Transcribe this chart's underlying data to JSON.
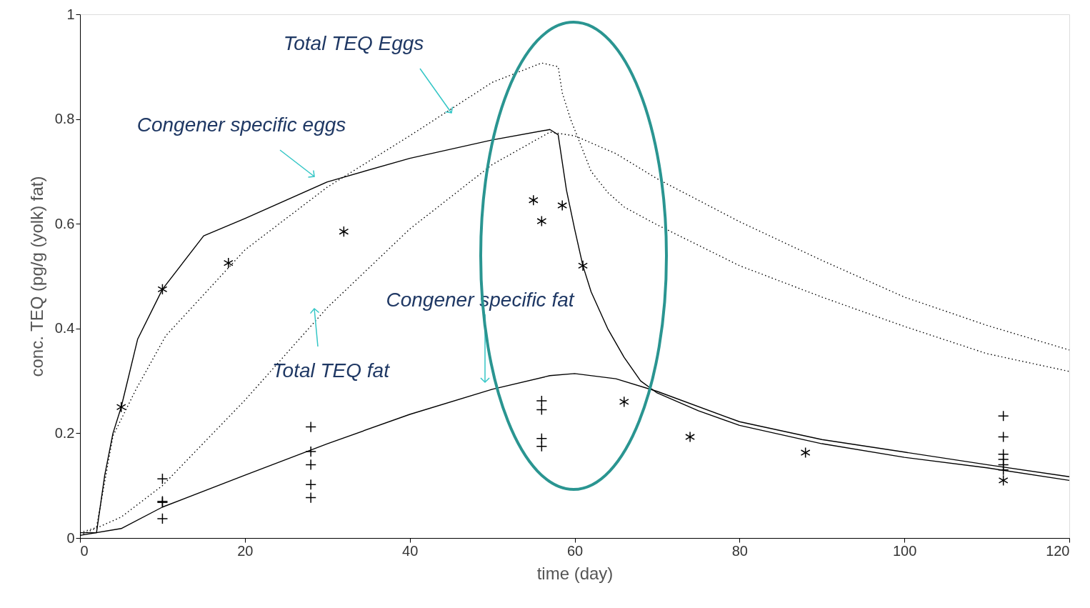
{
  "chart_data": {
    "type": "line",
    "xlabel": "time (day)",
    "ylabel": "conc. TEQ (pg/g (yolk) fat)",
    "xlim": [
      0,
      120
    ],
    "xticks": [
      0,
      20,
      40,
      60,
      80,
      100,
      120
    ],
    "ylim": [
      0,
      1
    ],
    "yticks": [
      0,
      0.2,
      0.4,
      0.6,
      0.8,
      1
    ],
    "grid": false,
    "series": [
      {
        "line_style": "solid",
        "color": "#000000",
        "x": [
          0,
          2,
          3,
          4,
          5,
          7,
          10,
          15,
          20,
          30,
          40,
          50,
          57,
          58,
          59,
          60,
          61,
          62,
          64,
          66,
          68,
          70,
          75,
          80,
          90,
          100,
          110,
          120
        ],
        "values": [
          0.01,
          0.01,
          0.12,
          0.2,
          0.25,
          0.38,
          0.475,
          0.577,
          0.61,
          0.68,
          0.725,
          0.76,
          0.78,
          0.77,
          0.665,
          0.59,
          0.52,
          0.47,
          0.4,
          0.345,
          0.3,
          0.277,
          0.243,
          0.215,
          0.18,
          0.154,
          0.134,
          0.11
        ]
      },
      {
        "line_style": "solid",
        "color": "#000000",
        "x": [
          0,
          5,
          10,
          20,
          30,
          40,
          50,
          57,
          60,
          65,
          70,
          80,
          90,
          100,
          110,
          120
        ],
        "values": [
          0.005,
          0.018,
          0.059,
          0.12,
          0.18,
          0.236,
          0.284,
          0.31,
          0.314,
          0.304,
          0.28,
          0.222,
          0.188,
          0.164,
          0.14,
          0.117
        ]
      },
      {
        "line_style": "dotted",
        "color": "#000000",
        "x": [
          0,
          2,
          4,
          6.8,
          10.4,
          20,
          30,
          40,
          50,
          56,
          58,
          58.5,
          59.5,
          61,
          62,
          64,
          66,
          70,
          80,
          90,
          100,
          110,
          120
        ],
        "values": [
          0.01,
          0.02,
          0.195,
          0.284,
          0.386,
          0.55,
          0.67,
          0.768,
          0.87,
          0.907,
          0.9,
          0.85,
          0.8,
          0.74,
          0.7,
          0.66,
          0.632,
          0.598,
          0.52,
          0.46,
          0.404,
          0.352,
          0.318
        ]
      },
      {
        "line_style": "dotted",
        "color": "#000000",
        "x": [
          0,
          5,
          10,
          20,
          30,
          40,
          50,
          57,
          60,
          65,
          70,
          80,
          90,
          100,
          110,
          120
        ],
        "values": [
          0.005,
          0.04,
          0.1,
          0.263,
          0.44,
          0.59,
          0.713,
          0.775,
          0.768,
          0.734,
          0.686,
          0.604,
          0.53,
          0.46,
          0.406,
          0.359
        ]
      },
      {
        "type": "scatter",
        "color": "#000000",
        "x": [
          5,
          10,
          18,
          32,
          55,
          56,
          58.5,
          61,
          66,
          74,
          88,
          112
        ],
        "values": [
          0.25,
          0.475,
          0.525,
          0.585,
          0.645,
          0.605,
          0.635,
          0.52,
          0.26,
          0.193,
          0.163,
          0.11
        ]
      },
      {
        "type": "scatter",
        "marker": "cross",
        "color": "#000000",
        "x": [
          10,
          10,
          10,
          10,
          28,
          28,
          28,
          28,
          28,
          56,
          56,
          56,
          56,
          112,
          112,
          112,
          112,
          112,
          112
        ],
        "values": [
          0.113,
          0.07,
          0.068,
          0.037,
          0.212,
          0.165,
          0.14,
          0.102,
          0.077,
          0.262,
          0.245,
          0.19,
          0.175,
          0.233,
          0.193,
          0.16,
          0.15,
          0.14,
          0.13
        ]
      }
    ],
    "annotations": [
      "Total TEQ Eggs",
      "Congener specific eggs",
      "Total TEQ fat",
      "Congener specific fat"
    ]
  }
}
